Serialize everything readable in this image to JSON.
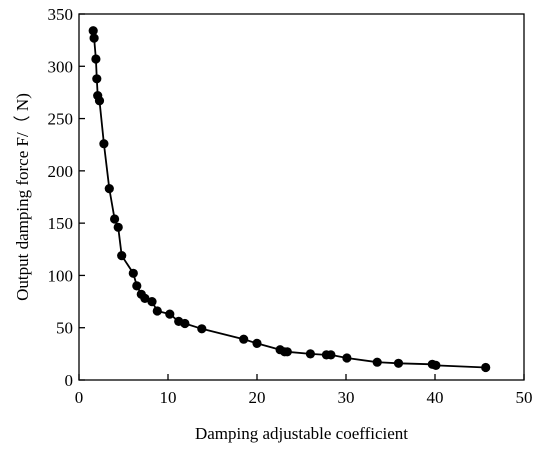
{
  "chart_data": {
    "type": "line",
    "title": "",
    "xlabel": "Damping adjustable coefficient",
    "ylabel": "Output damping force F/（ N)",
    "xlim": [
      0,
      50
    ],
    "ylim": [
      0,
      350
    ],
    "xticks": [
      "0",
      "10",
      "20",
      "30",
      "40",
      "50"
    ],
    "yticks": [
      "0",
      "50",
      "100",
      "150",
      "200",
      "250",
      "300",
      "350"
    ],
    "grid": false,
    "legend": "none",
    "series": [
      {
        "color": "#000000",
        "marker": "circle",
        "x": [
          1.6,
          1.7,
          1.9,
          2.0,
          2.1,
          2.3,
          2.8,
          3.4,
          4.0,
          4.4,
          4.8,
          6.1,
          6.5,
          7.0,
          7.4,
          8.2,
          8.8,
          10.2,
          11.2,
          11.9,
          13.8,
          18.5,
          20.0,
          22.6,
          23.1,
          23.4,
          26.0,
          27.8,
          28.3,
          30.1,
          33.5,
          35.9,
          39.7,
          40.1,
          45.7
        ],
        "y": [
          334,
          327,
          307,
          288,
          272,
          267,
          226,
          183,
          154,
          146,
          119,
          102,
          90,
          82,
          78,
          75,
          66,
          63,
          56,
          54,
          49,
          39,
          35,
          29,
          27,
          27,
          25,
          24,
          24,
          21,
          17,
          16,
          15,
          14,
          12
        ]
      }
    ]
  }
}
